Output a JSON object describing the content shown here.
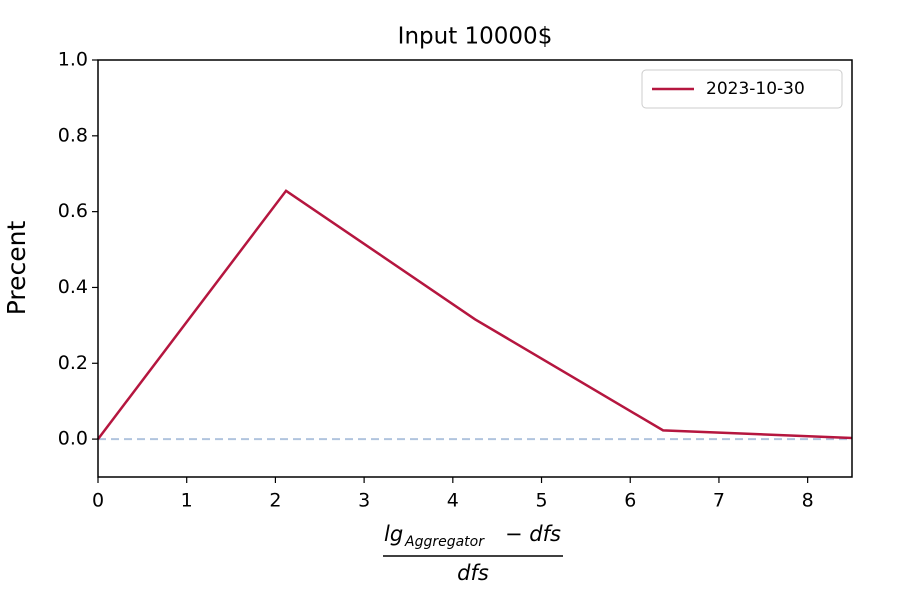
{
  "chart_data": {
    "type": "line",
    "title": "Input 10000$",
    "xlabel": {
      "base": "lg",
      "sub": "Aggregator",
      "numerator_rest": "− dfs",
      "denominator": "dfs"
    },
    "ylabel": "Precent",
    "x": [
      0,
      2.12,
      4.25,
      6.37,
      8.5
    ],
    "series": [
      {
        "name": "2023-10-30",
        "color": "#b5163f",
        "values": [
          0,
          0.655,
          0.316,
          0.023,
          0.003
        ]
      }
    ],
    "hline": {
      "y": 0,
      "color": "#b0c4de"
    },
    "xlim": [
      0,
      8.5
    ],
    "ylim": [
      -0.1,
      1.0
    ],
    "xticks": [
      0,
      1,
      2,
      3,
      4,
      5,
      6,
      7,
      8
    ],
    "yticks": [
      {
        "value": 0,
        "label": "0.0"
      },
      0.2,
      0.4,
      0.6,
      0.8,
      {
        "value": 1,
        "label": "1.0"
      }
    ],
    "legend": "upper right",
    "grid": false
  }
}
